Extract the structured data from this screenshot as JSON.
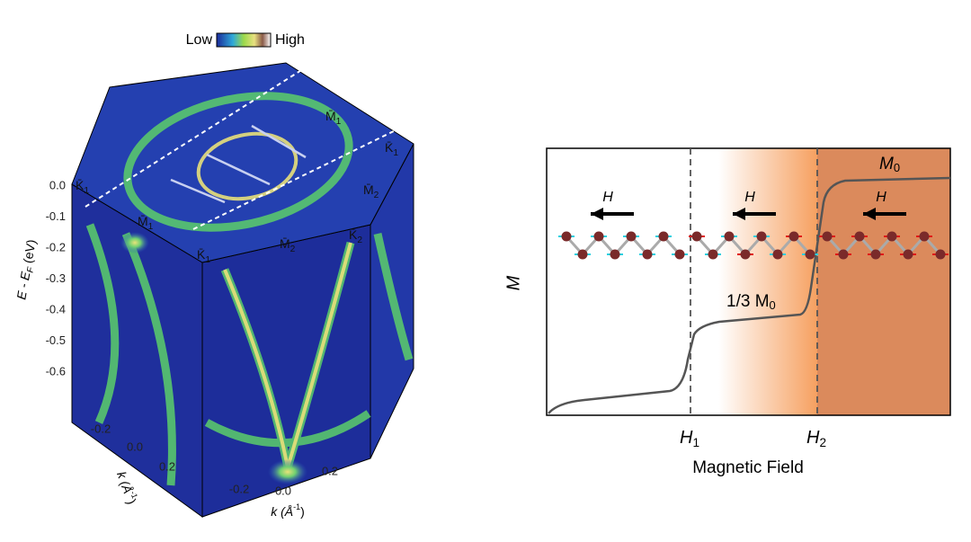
{
  "colorbar": {
    "low": "Low",
    "high": "High"
  },
  "arpes": {
    "energy_label": {
      "main": "E - E",
      "sub": "F",
      "unit": " (eV)"
    },
    "energy_ticks": [
      "0.0",
      "-0.1",
      "-0.2",
      "-0.3",
      "-0.4",
      "-0.5",
      "-0.6"
    ],
    "left_k_ticks": [
      "-0.2",
      "0.0",
      "0.2"
    ],
    "front_k_ticks": [
      "-0.2",
      "0.0",
      "0.2"
    ],
    "k_label": {
      "main": "k (Å",
      "sup": "-1",
      "end": ")"
    },
    "points": [
      {
        "main": "K̄",
        "sub": "1"
      },
      {
        "main": "M̄",
        "sub": "1"
      },
      {
        "main": "K̄",
        "sub": "1"
      },
      {
        "main": "M̄",
        "sub": "2"
      },
      {
        "main": "K̄",
        "sub": "2"
      },
      {
        "main": "M̄",
        "sub": "2"
      },
      {
        "main": "K̄",
        "sub": "1"
      },
      {
        "main": "M̄",
        "sub": "1"
      }
    ]
  },
  "magnetization": {
    "y_label": "M",
    "x_label": "Magnetic Field",
    "field_arrows": [
      "H",
      "H",
      "H"
    ],
    "plateau": {
      "main": "1/3 M",
      "sub": "0"
    },
    "saturation": {
      "main": "M",
      "sub": "0"
    },
    "h1": {
      "main": "H",
      "sub": "1"
    },
    "h2": {
      "main": "H",
      "sub": "2"
    }
  }
}
